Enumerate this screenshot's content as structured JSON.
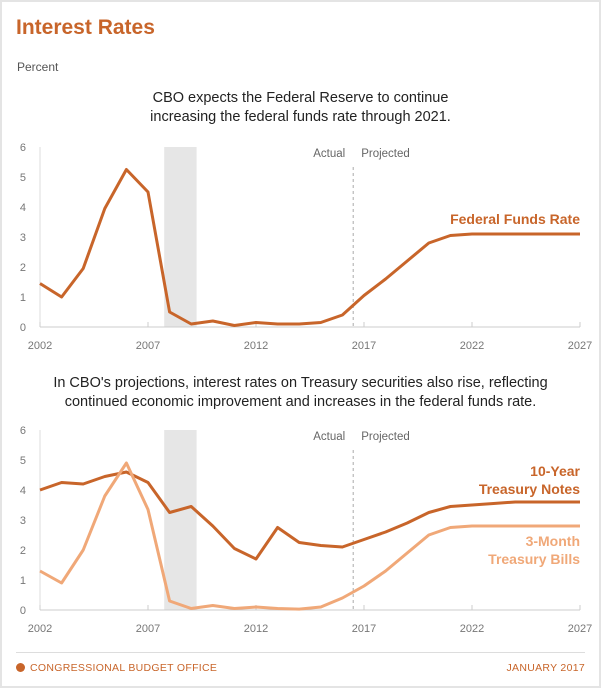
{
  "title": "Interest Rates",
  "unit": "Percent",
  "footer": {
    "org": "CONGRESSIONAL BUDGET OFFICE",
    "date": "JANUARY 2017"
  },
  "colors": {
    "accent": "#c8652a",
    "light": "#f0a878",
    "recession": "#e6e6e6"
  },
  "chart_data": [
    {
      "type": "line",
      "subtitle_lines": [
        "CBO expects the Federal Reserve to continue",
        "increasing the federal funds rate through 2021."
      ],
      "x": [
        2002,
        2003,
        2004,
        2005,
        2006,
        2007,
        2008,
        2009,
        2010,
        2011,
        2012,
        2013,
        2014,
        2015,
        2016,
        2017,
        2018,
        2019,
        2020,
        2021,
        2022,
        2023,
        2024,
        2025,
        2026,
        2027
      ],
      "xlim": [
        2002,
        2027
      ],
      "ylim": [
        0,
        6
      ],
      "xticks": [
        "2002",
        "2007",
        "2012",
        "2017",
        "2022",
        "2027"
      ],
      "yticks": [
        "0",
        "1",
        "2",
        "3",
        "4",
        "5",
        "6"
      ],
      "recession": [
        2007.75,
        2009.25
      ],
      "divider": 2016.5,
      "actual_label": "Actual",
      "projected_label": "Projected",
      "series": [
        {
          "name": "Federal Funds Rate",
          "color": "#c8652a",
          "values": [
            1.45,
            1.0,
            1.95,
            3.95,
            5.25,
            4.5,
            0.5,
            0.1,
            0.2,
            0.05,
            0.15,
            0.1,
            0.1,
            0.15,
            0.4,
            1.05,
            1.6,
            2.2,
            2.8,
            3.05,
            3.1,
            3.1,
            3.1,
            3.1,
            3.1,
            3.1
          ]
        }
      ]
    },
    {
      "type": "line",
      "subtitle_lines": [
        "In CBO's projections, interest rates on Treasury securities also rise, reflecting",
        "continued economic improvement and increases in the federal funds rate."
      ],
      "x": [
        2002,
        2003,
        2004,
        2005,
        2006,
        2007,
        2008,
        2009,
        2010,
        2011,
        2012,
        2013,
        2014,
        2015,
        2016,
        2017,
        2018,
        2019,
        2020,
        2021,
        2022,
        2023,
        2024,
        2025,
        2026,
        2027
      ],
      "xlim": [
        2002,
        2027
      ],
      "ylim": [
        0,
        6
      ],
      "xticks": [
        "2002",
        "2007",
        "2012",
        "2017",
        "2022",
        "2027"
      ],
      "yticks": [
        "0",
        "1",
        "2",
        "3",
        "4",
        "5",
        "6"
      ],
      "recession": [
        2007.75,
        2009.25
      ],
      "divider": 2016.5,
      "actual_label": "Actual",
      "projected_label": "Projected",
      "series": [
        {
          "name": "10-Year Treasury Notes",
          "label_lines": [
            "10-Year",
            "Treasury Notes"
          ],
          "color": "#c8652a",
          "values": [
            4.0,
            4.25,
            4.2,
            4.45,
            4.6,
            4.25,
            3.25,
            3.45,
            2.8,
            2.05,
            1.7,
            2.75,
            2.25,
            2.15,
            2.1,
            2.35,
            2.6,
            2.9,
            3.25,
            3.45,
            3.5,
            3.55,
            3.6,
            3.6,
            3.6,
            3.6
          ]
        },
        {
          "name": "3-Month Treasury Bills",
          "label_lines": [
            "3-Month",
            "Treasury Bills"
          ],
          "color": "#f0a878",
          "values": [
            1.3,
            0.9,
            2.0,
            3.8,
            4.9,
            3.35,
            0.3,
            0.05,
            0.15,
            0.05,
            0.1,
            0.05,
            0.03,
            0.1,
            0.4,
            0.8,
            1.3,
            1.9,
            2.5,
            2.75,
            2.8,
            2.8,
            2.8,
            2.8,
            2.8,
            2.8
          ]
        }
      ]
    }
  ]
}
